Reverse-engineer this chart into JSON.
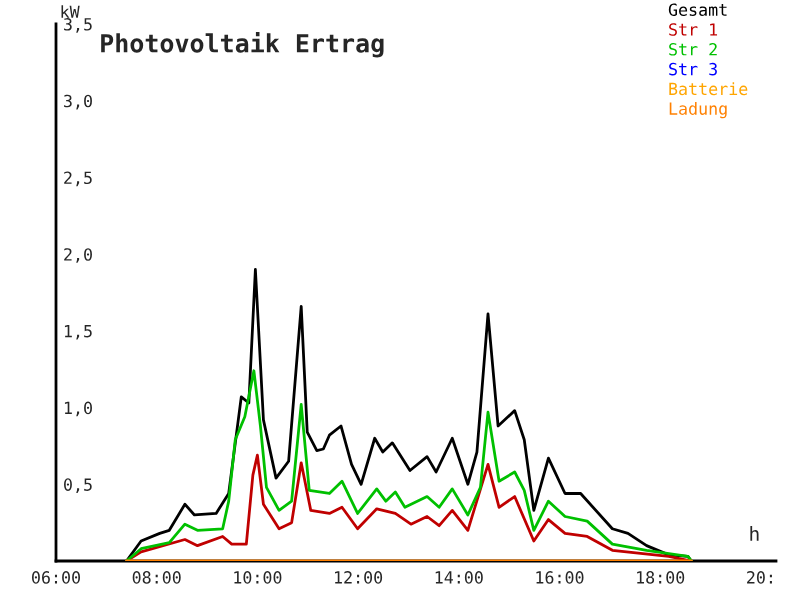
{
  "chart_data": {
    "type": "line",
    "title": "Photovoltaik Ertrag",
    "xlabel": "h",
    "ylabel": "kW",
    "xlim": [
      6,
      20.3
    ],
    "ylim": [
      0,
      3.5
    ],
    "xticks": [
      {
        "value": 6,
        "label": "06:00"
      },
      {
        "value": 8,
        "label": "08:00"
      },
      {
        "value": 10,
        "label": "10:00"
      },
      {
        "value": 12,
        "label": "12:00"
      },
      {
        "value": 14,
        "label": "14:00"
      },
      {
        "value": 16,
        "label": "16:00"
      },
      {
        "value": 18,
        "label": "18:00"
      },
      {
        "value": 20,
        "label": "20:"
      }
    ],
    "yticks": [
      {
        "value": 0.5,
        "label": "0,5"
      },
      {
        "value": 1.0,
        "label": "1,0"
      },
      {
        "value": 1.5,
        "label": "1,5"
      },
      {
        "value": 2.0,
        "label": "2,0"
      },
      {
        "value": 2.5,
        "label": "2,5"
      },
      {
        "value": 3.0,
        "label": "3,0"
      },
      {
        "value": 3.5,
        "label": "3,5"
      }
    ],
    "grid": false,
    "legend": "top right",
    "marker": "none",
    "line_style": "solid",
    "series": [
      {
        "name": "Gesamt",
        "color": "#000000",
        "x": [
          7.4,
          7.69,
          8.06,
          8.25,
          8.56,
          8.75,
          9.18,
          9.43,
          9.68,
          9.83,
          9.96,
          10.12,
          10.37,
          10.62,
          10.87,
          10.99,
          11.18,
          11.31,
          11.43,
          11.66,
          11.87,
          12.06,
          12.33,
          12.49,
          12.68,
          13.03,
          13.37,
          13.55,
          13.87,
          14.18,
          14.36,
          14.58,
          14.78,
          15.11,
          15.3,
          15.49,
          15.78,
          16.11,
          16.42,
          17.05,
          17.36,
          17.73,
          18.17,
          18.55,
          18.62
        ],
        "values": [
          0,
          0.13,
          0.18,
          0.2,
          0.37,
          0.3,
          0.31,
          0.44,
          1.07,
          1.03,
          1.9,
          0.92,
          0.54,
          0.65,
          1.66,
          0.84,
          0.72,
          0.73,
          0.82,
          0.88,
          0.63,
          0.5,
          0.8,
          0.71,
          0.77,
          0.59,
          0.68,
          0.58,
          0.8,
          0.5,
          0.71,
          1.61,
          0.88,
          0.98,
          0.79,
          0.33,
          0.67,
          0.44,
          0.44,
          0.21,
          0.18,
          0.1,
          0.04,
          0.03,
          0
        ]
      },
      {
        "name": "Str 1",
        "color": "#c00000",
        "x": [
          7.4,
          7.69,
          8.56,
          8.81,
          9.31,
          9.49,
          9.78,
          9.91,
          10.0,
          10.12,
          10.43,
          10.68,
          10.87,
          11.06,
          11.43,
          11.68,
          11.99,
          12.37,
          12.74,
          13.05,
          13.37,
          13.61,
          13.87,
          14.18,
          14.58,
          14.8,
          15.11,
          15.49,
          15.78,
          16.11,
          16.55,
          17.05,
          18.17,
          18.62
        ],
        "values": [
          0,
          0.06,
          0.14,
          0.1,
          0.16,
          0.11,
          0.11,
          0.56,
          0.69,
          0.37,
          0.21,
          0.25,
          0.64,
          0.33,
          0.31,
          0.35,
          0.21,
          0.34,
          0.31,
          0.24,
          0.29,
          0.23,
          0.33,
          0.2,
          0.63,
          0.35,
          0.42,
          0.13,
          0.27,
          0.18,
          0.16,
          0.07,
          0.03,
          0
        ]
      },
      {
        "name": "Str 2",
        "color": "#00c000",
        "x": [
          7.4,
          7.69,
          8.25,
          8.56,
          8.81,
          9.31,
          9.43,
          9.56,
          9.75,
          9.93,
          10.06,
          10.18,
          10.43,
          10.68,
          10.87,
          11.03,
          11.43,
          11.68,
          11.99,
          12.37,
          12.55,
          12.74,
          12.93,
          13.37,
          13.61,
          13.87,
          14.18,
          14.43,
          14.58,
          14.8,
          15.11,
          15.3,
          15.49,
          15.78,
          16.11,
          16.55,
          17.05,
          17.73,
          18.55,
          18.62
        ],
        "values": [
          0,
          0.08,
          0.12,
          0.24,
          0.2,
          0.21,
          0.39,
          0.79,
          0.94,
          1.24,
          0.88,
          0.48,
          0.33,
          0.39,
          1.02,
          0.46,
          0.44,
          0.52,
          0.31,
          0.47,
          0.39,
          0.45,
          0.35,
          0.42,
          0.35,
          0.47,
          0.3,
          0.48,
          0.97,
          0.52,
          0.58,
          0.46,
          0.2,
          0.39,
          0.29,
          0.26,
          0.11,
          0.07,
          0.03,
          0
        ]
      },
      {
        "name": "Str 3",
        "color": "#0000ff"
      },
      {
        "name": "Batterie",
        "color": "#ffa500"
      },
      {
        "name": "Ladung",
        "color": "#ff8000",
        "x": [
          7.4,
          18.62
        ],
        "values": [
          0,
          0
        ]
      }
    ]
  }
}
